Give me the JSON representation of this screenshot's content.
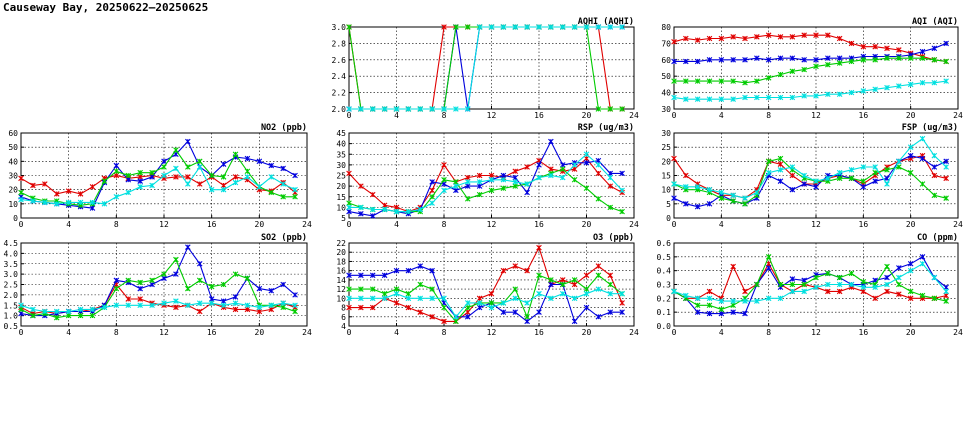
{
  "page": {
    "title": "Causeway Bay, 20250622–20250625"
  },
  "chart_data": [
    {
      "type": "line",
      "title": "AQHI (AQHI)",
      "grid": true,
      "xlim": [
        0,
        24
      ],
      "xticks": [
        0,
        4,
        8,
        12,
        16,
        20,
        24
      ],
      "ylim": [
        2.0,
        3.0
      ],
      "yticks": [
        2.0,
        2.2,
        2.4,
        2.6,
        2.8,
        3.0
      ],
      "ydecimals": 1,
      "series": [
        {
          "color": "#e00000",
          "values": [
            3,
            2,
            2,
            2,
            2,
            2,
            2,
            2,
            3,
            3,
            3,
            3,
            3,
            3,
            3,
            3,
            3,
            3,
            3,
            3,
            3,
            3,
            2,
            2
          ]
        },
        {
          "color": "#0000dd",
          "values": [
            2,
            2,
            2,
            2,
            2,
            2,
            2,
            2,
            2,
            3,
            2,
            3,
            3,
            3,
            3,
            3,
            3,
            3,
            3,
            3,
            3,
            3,
            3,
            3
          ]
        },
        {
          "color": "#00cc00",
          "values": [
            3,
            2,
            2,
            2,
            2,
            2,
            2,
            2,
            2,
            3,
            3,
            3,
            3,
            3,
            3,
            3,
            3,
            3,
            3,
            3,
            3,
            2,
            2,
            2
          ]
        },
        {
          "color": "#00e0e0",
          "values": [
            2,
            2,
            2,
            2,
            2,
            2,
            2,
            2,
            2,
            2,
            2,
            3,
            3,
            3,
            3,
            3,
            3,
            3,
            3,
            3,
            3,
            3,
            3,
            3
          ]
        }
      ]
    },
    {
      "type": "line",
      "title": "AQI (AQI)",
      "grid": true,
      "xlim": [
        0,
        24
      ],
      "xticks": [
        0,
        4,
        8,
        12,
        16,
        20,
        24
      ],
      "ylim": [
        30,
        80
      ],
      "yticks": [
        30,
        40,
        50,
        60,
        70,
        80
      ],
      "ydecimals": 0,
      "series": [
        {
          "color": "#e00000",
          "values": [
            71,
            73,
            72,
            73,
            73,
            74,
            73,
            74,
            75,
            74,
            74,
            75,
            75,
            75,
            73,
            70,
            68,
            68,
            67,
            66,
            64,
            62,
            60,
            59
          ]
        },
        {
          "color": "#0000dd",
          "values": [
            59,
            59,
            59,
            60,
            60,
            60,
            60,
            61,
            60,
            61,
            61,
            60,
            60,
            61,
            61,
            61,
            62,
            62,
            62,
            62,
            63,
            65,
            67,
            70
          ]
        },
        {
          "color": "#00cc00",
          "values": [
            47,
            47,
            47,
            47,
            47,
            47,
            46,
            47,
            49,
            51,
            53,
            54,
            56,
            57,
            58,
            59,
            60,
            60,
            61,
            61,
            61,
            61,
            60,
            59
          ]
        },
        {
          "color": "#00e0e0",
          "values": [
            37,
            36,
            36,
            36,
            36,
            36,
            37,
            37,
            37,
            37,
            37,
            38,
            38,
            39,
            39,
            40,
            41,
            42,
            43,
            44,
            45,
            46,
            46,
            47
          ]
        }
      ]
    },
    {
      "type": "line",
      "title": "NO2 (ppb)",
      "grid": true,
      "xlim": [
        0,
        24
      ],
      "xticks": [
        0,
        4,
        8,
        12,
        16,
        20,
        24
      ],
      "ylim": [
        0,
        60
      ],
      "yticks": [
        0,
        10,
        20,
        30,
        40,
        50,
        60
      ],
      "ydecimals": 0,
      "series": [
        {
          "color": "#e00000",
          "values": [
            28,
            23,
            24,
            17,
            19,
            17,
            22,
            28,
            30,
            28,
            29,
            30,
            28,
            29,
            29,
            24,
            29,
            23,
            29,
            27,
            20,
            19,
            25,
            18
          ]
        },
        {
          "color": "#0000dd",
          "values": [
            15,
            12,
            11,
            10,
            9,
            8,
            7,
            25,
            37,
            27,
            26,
            29,
            40,
            45,
            54,
            36,
            30,
            38,
            43,
            42,
            40,
            37,
            35,
            30
          ]
        },
        {
          "color": "#00cc00",
          "values": [
            18,
            14,
            12,
            12,
            10,
            9,
            10,
            26,
            33,
            30,
            32,
            32,
            36,
            48,
            36,
            40,
            30,
            29,
            45,
            33,
            22,
            18,
            15,
            15
          ]
        },
        {
          "color": "#00e0e0",
          "values": [
            13,
            12,
            11,
            10,
            11,
            11,
            11,
            10,
            15,
            18,
            22,
            23,
            30,
            35,
            24,
            36,
            20,
            20,
            25,
            29,
            22,
            29,
            24,
            20
          ]
        }
      ]
    },
    {
      "type": "line",
      "title": "RSP (ug/m3)",
      "grid": true,
      "xlim": [
        0,
        24
      ],
      "xticks": [
        0,
        4,
        8,
        12,
        16,
        20,
        24
      ],
      "ylim": [
        5,
        45
      ],
      "yticks": [
        5,
        10,
        15,
        20,
        25,
        30,
        35,
        40,
        45
      ],
      "ydecimals": 0,
      "series": [
        {
          "color": "#e00000",
          "values": [
            26,
            20,
            16,
            11,
            10,
            8,
            10,
            18,
            30,
            22,
            24,
            25,
            25,
            24,
            27,
            29,
            32,
            28,
            27,
            28,
            33,
            26,
            20,
            17
          ]
        },
        {
          "color": "#0000dd",
          "values": [
            8,
            7,
            6,
            9,
            8,
            7,
            9,
            22,
            21,
            18,
            20,
            20,
            23,
            25,
            24,
            17,
            30,
            41,
            30,
            31,
            31,
            32,
            26,
            26
          ]
        },
        {
          "color": "#00cc00",
          "values": [
            12,
            10,
            9,
            9,
            8,
            8,
            8,
            15,
            23,
            22,
            14,
            16,
            18,
            19,
            20,
            21,
            24,
            26,
            28,
            23,
            19,
            14,
            10,
            8
          ]
        },
        {
          "color": "#00e0e0",
          "values": [
            10,
            10,
            9,
            9,
            8,
            8,
            9,
            12,
            18,
            20,
            22,
            22,
            23,
            23,
            22,
            21,
            24,
            25,
            24,
            30,
            35,
            30,
            24,
            18
          ]
        }
      ]
    },
    {
      "type": "line",
      "title": "FSP (ug/m3)",
      "grid": true,
      "xlim": [
        0,
        24
      ],
      "xticks": [
        0,
        4,
        8,
        12,
        16,
        20,
        24
      ],
      "ylim": [
        0,
        30
      ],
      "yticks": [
        0,
        5,
        10,
        15,
        20,
        25,
        30
      ],
      "ydecimals": 0,
      "series": [
        {
          "color": "#e00000",
          "values": [
            21,
            15,
            12,
            10,
            8,
            8,
            7,
            10,
            20,
            19,
            15,
            12,
            12,
            14,
            15,
            14,
            12,
            15,
            18,
            20,
            21,
            22,
            15,
            14
          ]
        },
        {
          "color": "#0000dd",
          "values": [
            7,
            5,
            4,
            5,
            8,
            6,
            5,
            7,
            15,
            13,
            10,
            12,
            11,
            15,
            15,
            14,
            11,
            13,
            14,
            20,
            22,
            21,
            18,
            20
          ]
        },
        {
          "color": "#00cc00",
          "values": [
            12,
            10,
            10,
            9,
            7,
            6,
            5,
            8,
            20,
            21,
            17,
            14,
            13,
            13,
            14,
            14,
            13,
            16,
            17,
            18,
            16,
            12,
            8,
            7
          ]
        },
        {
          "color": "#00e0e0",
          "values": [
            12,
            11,
            11,
            10,
            9,
            8,
            7,
            9,
            16,
            17,
            18,
            15,
            13,
            14,
            16,
            17,
            18,
            18,
            12,
            20,
            25,
            28,
            22,
            18
          ]
        }
      ]
    },
    {
      "type": "line",
      "title": "SO2 (ppb)",
      "grid": true,
      "xlim": [
        0,
        24
      ],
      "xticks": [
        0,
        4,
        8,
        12,
        16,
        20,
        24
      ],
      "ylim": [
        0.5,
        4.5
      ],
      "yticks": [
        0.5,
        1.0,
        1.5,
        2.0,
        2.5,
        3.0,
        3.5,
        4.0,
        4.5
      ],
      "ydecimals": 1,
      "series": [
        {
          "color": "#e00000",
          "values": [
            1.4,
            1.1,
            1.2,
            1.1,
            1.2,
            1.2,
            1.3,
            1.5,
            2.5,
            1.8,
            1.8,
            1.6,
            1.5,
            1.4,
            1.5,
            1.2,
            1.6,
            1.4,
            1.3,
            1.3,
            1.2,
            1.3,
            1.6,
            1.4
          ]
        },
        {
          "color": "#0000dd",
          "values": [
            1.1,
            1.0,
            1.0,
            1.1,
            1.2,
            1.2,
            1.2,
            1.5,
            2.7,
            2.6,
            2.3,
            2.5,
            2.8,
            3.0,
            4.3,
            3.5,
            1.8,
            1.7,
            1.9,
            2.8,
            2.3,
            2.2,
            2.5,
            2.0
          ]
        },
        {
          "color": "#00cc00",
          "values": [
            1.3,
            1.0,
            1.1,
            0.9,
            1.0,
            1.0,
            1.0,
            1.4,
            2.3,
            2.7,
            2.6,
            2.7,
            3.0,
            3.7,
            2.3,
            2.7,
            2.4,
            2.5,
            3.0,
            2.8,
            1.5,
            1.5,
            1.4,
            1.2
          ]
        },
        {
          "color": "#00e0e0",
          "values": [
            1.5,
            1.3,
            1.2,
            1.2,
            1.2,
            1.3,
            1.3,
            1.4,
            1.5,
            1.5,
            1.5,
            1.5,
            1.6,
            1.7,
            1.5,
            1.6,
            1.6,
            1.5,
            1.6,
            1.5,
            1.4,
            1.5,
            1.6,
            1.5
          ]
        }
      ]
    },
    {
      "type": "line",
      "title": "O3 (ppb)",
      "grid": true,
      "xlim": [
        0,
        24
      ],
      "xticks": [
        0,
        4,
        8,
        12,
        16,
        20,
        24
      ],
      "ylim": [
        4,
        22
      ],
      "yticks": [
        4,
        6,
        8,
        10,
        12,
        14,
        16,
        18,
        20,
        22
      ],
      "ydecimals": 0,
      "series": [
        {
          "color": "#e00000",
          "values": [
            8,
            8,
            8,
            10,
            9,
            8,
            7,
            6,
            5,
            5,
            7,
            10,
            11,
            16,
            17,
            16,
            21,
            13,
            14,
            13,
            15,
            17,
            15,
            9
          ]
        },
        {
          "color": "#0000dd",
          "values": [
            15,
            15,
            15,
            15,
            16,
            16,
            17,
            16,
            9,
            6,
            6,
            8,
            9,
            7,
            7,
            5,
            7,
            13,
            13,
            5,
            8,
            6,
            7,
            7
          ]
        },
        {
          "color": "#00cc00",
          "values": [
            12,
            12,
            12,
            11,
            12,
            11,
            13,
            12,
            8,
            5,
            8,
            9,
            9,
            9,
            12,
            6,
            15,
            14,
            13,
            14,
            12,
            15,
            13,
            11
          ]
        },
        {
          "color": "#00e0e0",
          "values": [
            10,
            10,
            10,
            10,
            11,
            10,
            10,
            10,
            10,
            6,
            9,
            9,
            8,
            9,
            10,
            9,
            11,
            10,
            11,
            10,
            11,
            12,
            11,
            11
          ]
        }
      ]
    },
    {
      "type": "line",
      "title": "CO (ppm)",
      "grid": true,
      "xlim": [
        0,
        24
      ],
      "xticks": [
        0,
        4,
        8,
        12,
        16,
        20,
        24
      ],
      "ylim": [
        0,
        0.6
      ],
      "yticks": [
        0.0,
        0.1,
        0.2,
        0.3,
        0.4,
        0.5,
        0.6
      ],
      "ydecimals": 1,
      "series": [
        {
          "color": "#e00000",
          "values": [
            0.25,
            0.2,
            0.2,
            0.25,
            0.2,
            0.43,
            0.25,
            0.3,
            0.45,
            0.3,
            0.25,
            0.3,
            0.28,
            0.25,
            0.25,
            0.28,
            0.25,
            0.2,
            0.25,
            0.23,
            0.2,
            0.2,
            0.2,
            0.22
          ]
        },
        {
          "color": "#0000dd",
          "values": [
            0.25,
            0.2,
            0.1,
            0.09,
            0.09,
            0.1,
            0.09,
            0.3,
            0.42,
            0.28,
            0.34,
            0.33,
            0.37,
            0.38,
            0.35,
            0.3,
            0.3,
            0.33,
            0.35,
            0.42,
            0.45,
            0.5,
            0.35,
            0.28
          ]
        },
        {
          "color": "#00cc00",
          "values": [
            0.25,
            0.2,
            0.15,
            0.15,
            0.12,
            0.15,
            0.2,
            0.3,
            0.5,
            0.3,
            0.3,
            0.3,
            0.35,
            0.38,
            0.35,
            0.38,
            0.32,
            0.3,
            0.43,
            0.3,
            0.25,
            0.22,
            0.2,
            0.18
          ]
        },
        {
          "color": "#00e0e0",
          "values": [
            0.25,
            0.22,
            0.2,
            0.2,
            0.18,
            0.18,
            0.18,
            0.18,
            0.2,
            0.2,
            0.25,
            0.25,
            0.28,
            0.3,
            0.3,
            0.3,
            0.28,
            0.28,
            0.3,
            0.35,
            0.4,
            0.45,
            0.35,
            0.25
          ]
        }
      ]
    }
  ]
}
